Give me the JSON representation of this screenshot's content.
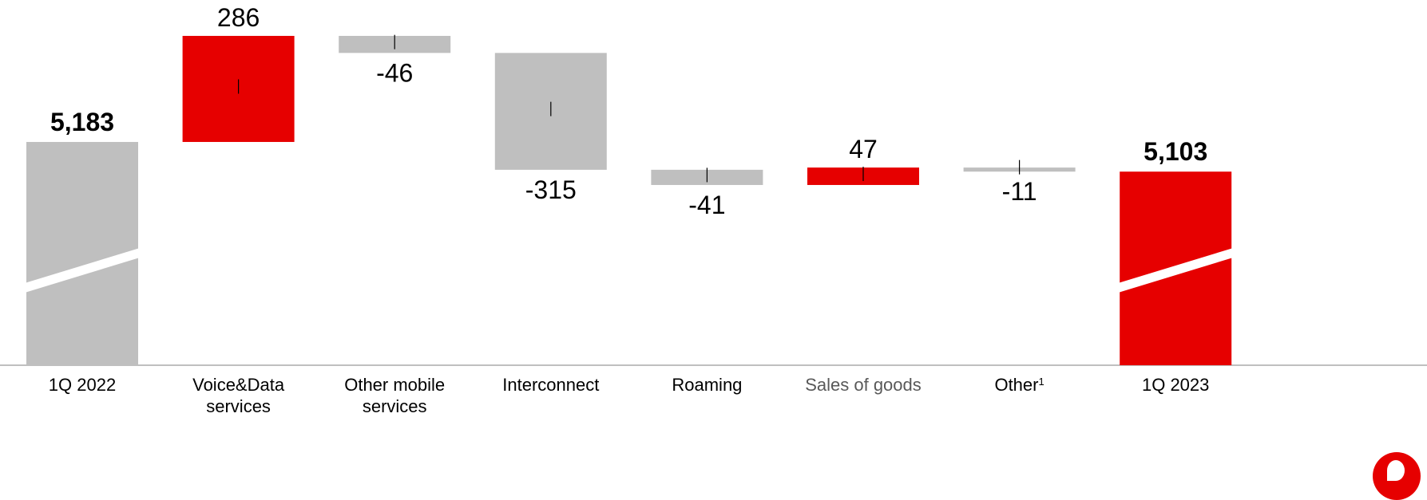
{
  "colors": {
    "increase": "#e60000",
    "decrease": "#bfbfbf",
    "start_total": "#bfbfbf",
    "end_total": "#e60000",
    "axis": "#bfbfbf",
    "text": "#000000",
    "muted_text": "#595959"
  },
  "logo": {
    "icon": "vodafone-speechmark-icon"
  },
  "chart_data": {
    "type": "waterfall",
    "title": "",
    "xlabel": "",
    "ylabel": "",
    "axis_break": true,
    "grid": false,
    "legend": "none",
    "categories": [
      {
        "lines": [
          "1Q 2022"
        ],
        "muted": false
      },
      {
        "lines": [
          "Voice&Data",
          "services"
        ],
        "muted": false
      },
      {
        "lines": [
          "Other mobile",
          "services"
        ],
        "muted": false
      },
      {
        "lines": [
          "Interconnect"
        ],
        "muted": false
      },
      {
        "lines": [
          "Roaming"
        ],
        "muted": false
      },
      {
        "lines": [
          "Sales of goods"
        ],
        "muted": true
      },
      {
        "lines": [
          "Other",
          "1"
        ],
        "muted": false,
        "superscript": true
      },
      {
        "lines": [
          "1Q 2023"
        ],
        "muted": false
      }
    ],
    "steps": [
      {
        "kind": "total",
        "value": 5183,
        "label": "5,183",
        "color_key": "start_total"
      },
      {
        "kind": "delta",
        "value": 286,
        "label": "286",
        "color_key": "increase"
      },
      {
        "kind": "delta",
        "value": -46,
        "label": "-46",
        "color_key": "decrease"
      },
      {
        "kind": "delta",
        "value": -315,
        "label": "-315",
        "color_key": "decrease"
      },
      {
        "kind": "delta",
        "value": -41,
        "label": "-41",
        "color_key": "decrease"
      },
      {
        "kind": "delta",
        "value": 47,
        "label": "47",
        "color_key": "increase"
      },
      {
        "kind": "delta",
        "value": -11,
        "label": "-11",
        "color_key": "decrease"
      },
      {
        "kind": "total",
        "value": 5103,
        "label": "5,103",
        "color_key": "end_total"
      }
    ]
  }
}
